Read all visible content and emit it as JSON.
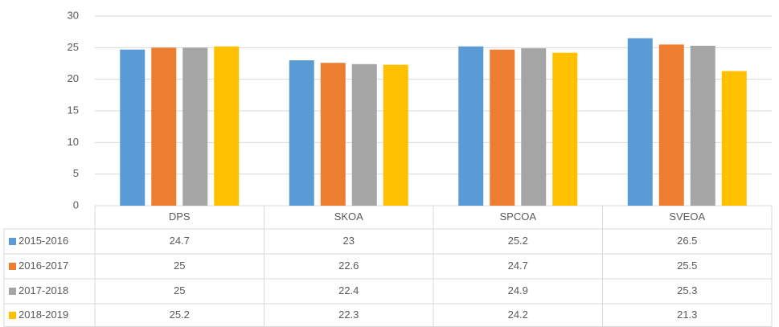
{
  "chart_data": {
    "type": "bar",
    "categories": [
      "DPS",
      "SKOA",
      "SPCOA",
      "SVEOA"
    ],
    "series": [
      {
        "name": "2015-2016",
        "color": "#5b9bd5",
        "values": [
          24.7,
          23,
          25.2,
          26.5
        ]
      },
      {
        "name": "2016-2017",
        "color": "#ed7d31",
        "values": [
          25,
          22.6,
          24.7,
          25.5
        ]
      },
      {
        "name": "2017-2018",
        "color": "#a5a5a5",
        "values": [
          25,
          22.4,
          24.9,
          25.3
        ]
      },
      {
        "name": "2018-2019",
        "color": "#ffc000",
        "values": [
          25.2,
          22.3,
          24.2,
          21.3
        ]
      }
    ],
    "ylim": [
      0,
      30
    ],
    "yticks": [
      0,
      5,
      10,
      15,
      20,
      25,
      30
    ],
    "grid": true,
    "data_table": true
  }
}
